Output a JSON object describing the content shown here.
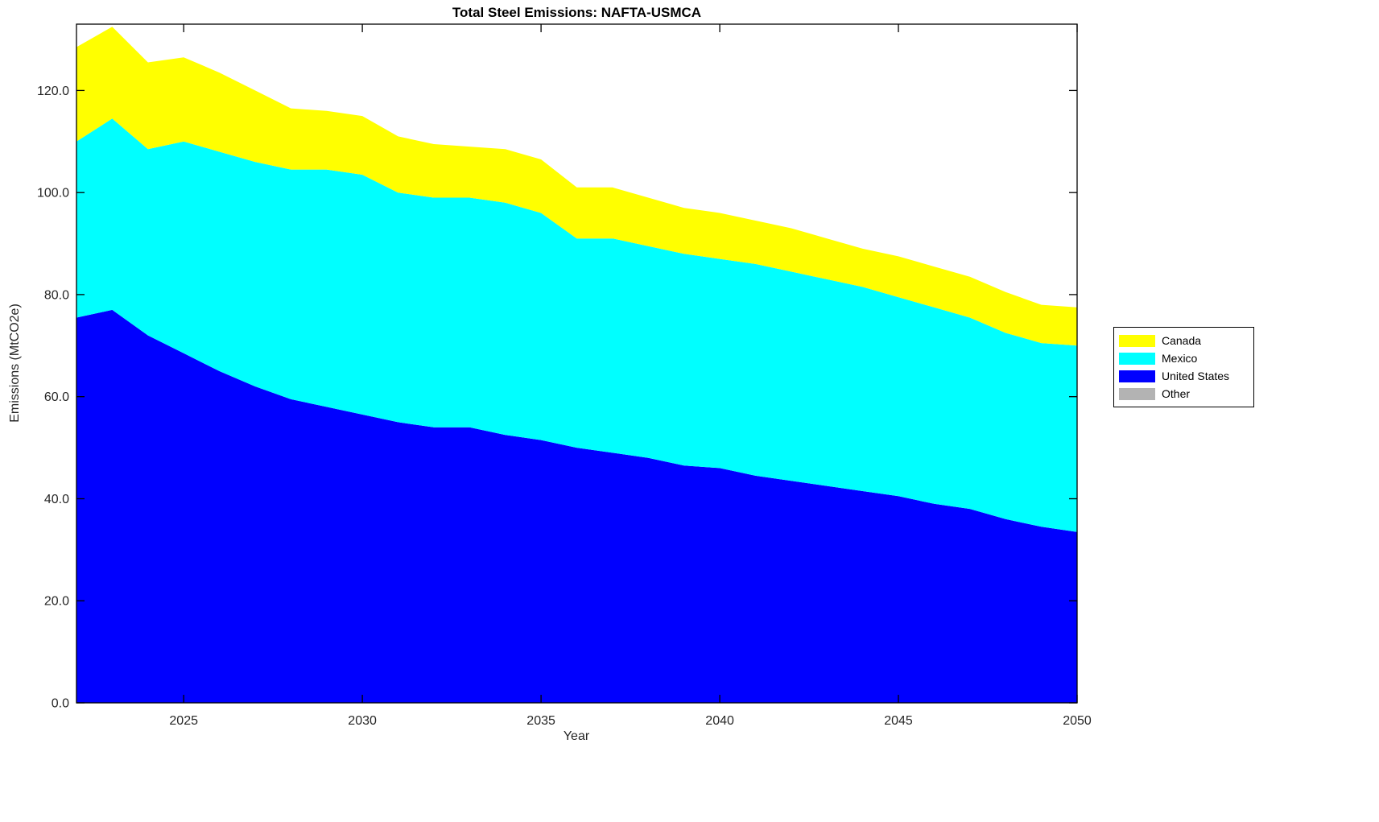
{
  "title": "Total Steel Emissions: NAFTA-USMCA",
  "xlabel": "Year",
  "ylabel": "Emissions (MtCO2e)",
  "legend": {
    "items": [
      {
        "label": "Canada",
        "color": "#ffff00"
      },
      {
        "label": "Mexico",
        "color": "#00ffff"
      },
      {
        "label": "United States",
        "color": "#0000ff"
      },
      {
        "label": "Other",
        "color": "#b3b3b3"
      }
    ]
  },
  "chart_data": {
    "type": "area",
    "stacked": true,
    "title": "Total Steel Emissions: NAFTA-USMCA",
    "xlabel": "Year",
    "ylabel": "Emissions (MtCO2e)",
    "grid": false,
    "legend_position": "right-outside",
    "xlim": [
      2022,
      2050
    ],
    "ylim": [
      0,
      133
    ],
    "xticks": [
      2025,
      2030,
      2035,
      2040,
      2045,
      2050
    ],
    "xtick_labels": [
      "2025",
      "2030",
      "2035",
      "2040",
      "2045",
      "2050"
    ],
    "yticks": [
      0,
      20,
      40,
      60,
      80,
      100,
      120
    ],
    "ytick_labels": [
      "0.0",
      "20.0",
      "40.0",
      "60.0",
      "80.0",
      "100.0",
      "120.0"
    ],
    "x": [
      2022,
      2023,
      2024,
      2025,
      2026,
      2027,
      2028,
      2029,
      2030,
      2031,
      2032,
      2033,
      2034,
      2035,
      2036,
      2037,
      2038,
      2039,
      2040,
      2041,
      2042,
      2043,
      2044,
      2045,
      2046,
      2047,
      2048,
      2049,
      2050
    ],
    "series": [
      {
        "name": "United States",
        "color": "#0000ff",
        "values": [
          75.5,
          77,
          72,
          68.5,
          65,
          62,
          59.5,
          58,
          56.5,
          55,
          54,
          54,
          52.5,
          51.5,
          50,
          49,
          48,
          46.5,
          46,
          44.5,
          43.5,
          42.5,
          41.5,
          40.5,
          39,
          38,
          36,
          34.5,
          33.5
        ]
      },
      {
        "name": "Mexico",
        "color": "#00ffff",
        "values": [
          34.5,
          37.5,
          36.5,
          41.5,
          43,
          44,
          45,
          46.5,
          47,
          45,
          45,
          45,
          45.5,
          44.5,
          41,
          42,
          41.5,
          41.5,
          41,
          41.5,
          41,
          40.5,
          40,
          39,
          38.5,
          37.5,
          36.5,
          36,
          36.5
        ]
      },
      {
        "name": "Canada",
        "color": "#ffff00",
        "values": [
          18.5,
          18,
          17,
          16.5,
          15.5,
          14,
          12,
          11.5,
          11.5,
          11,
          10.5,
          10,
          10.5,
          10.5,
          10,
          10,
          9.5,
          9,
          9,
          8.5,
          8.5,
          8,
          7.5,
          8,
          8,
          8,
          8,
          7.5,
          7.5
        ]
      }
    ]
  }
}
